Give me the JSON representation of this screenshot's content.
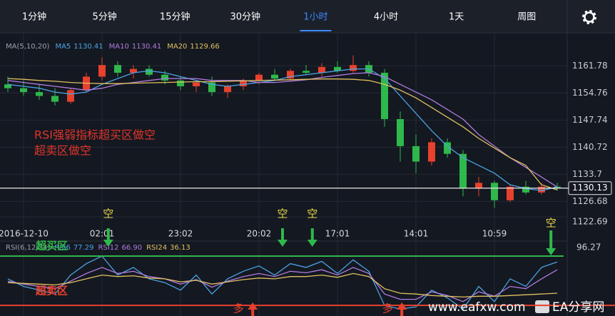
{
  "tabs": [
    "1分钟",
    "5分钟",
    "15分钟",
    "30分钟",
    "1小时",
    "4小时",
    "1天",
    "周图"
  ],
  "selected_tab": 4,
  "watermark": [
    "www.eafxw.com",
    "EA分享网"
  ],
  "chart_data": [
    {
      "type": "candlestick",
      "legend_title": "MA(5,10,20)",
      "categories": [
        null,
        "2016-12-10",
        null,
        null,
        null,
        null,
        "02:01",
        null,
        null,
        null,
        null,
        "23:02",
        null,
        null,
        null,
        null,
        "20:02",
        null,
        null,
        null,
        null,
        "17:01",
        null,
        null,
        null,
        null,
        "14:01",
        null,
        null,
        null,
        null,
        "10:59",
        null,
        null,
        null,
        null
      ],
      "open": [
        1157,
        1156,
        1155,
        1154,
        1152.5,
        1155.5,
        1159,
        1162,
        1160,
        1161,
        1159.5,
        1158,
        1156.5,
        1157.5,
        1155,
        1156.5,
        1158,
        1159.5,
        1158.5,
        1160.5,
        1160,
        1161.5,
        1160.5,
        1162,
        1160,
        1148,
        1141,
        1137,
        1142,
        1139,
        1130,
        1131.5,
        1127,
        1130.5,
        1129,
        1130.5
      ],
      "high": [
        1159,
        1158,
        1157,
        1156,
        1156,
        1160,
        1164,
        1163,
        1162,
        1162,
        1160.5,
        1159,
        1158,
        1159,
        1157,
        1158.5,
        1160,
        1161,
        1161,
        1162,
        1162.5,
        1163,
        1164.5,
        1163,
        1161,
        1150,
        1144,
        1143,
        1143,
        1140,
        1133,
        1132,
        1131,
        1132,
        1131.5,
        1131.5
      ],
      "low": [
        1155,
        1154,
        1153,
        1151.5,
        1152,
        1155,
        1158,
        1159,
        1158.5,
        1159,
        1157,
        1155.5,
        1155,
        1154,
        1153.5,
        1155.5,
        1157,
        1158,
        1158,
        1159.5,
        1159,
        1160,
        1160,
        1159,
        1146,
        1137,
        1134,
        1136,
        1138,
        1128,
        1128,
        1125,
        1126.5,
        1128.5,
        1128.5,
        1129.5
      ],
      "close": [
        1156,
        1155,
        1154,
        1152.5,
        1155.5,
        1159,
        1162,
        1160,
        1161,
        1159.5,
        1158,
        1156.5,
        1157.5,
        1155,
        1156.5,
        1158,
        1159.5,
        1158.5,
        1160.5,
        1160,
        1161.5,
        1160.5,
        1162,
        1160,
        1148,
        1141,
        1137,
        1142,
        1139,
        1130,
        1131.5,
        1127,
        1130.5,
        1129,
        1130.5,
        1130.13
      ],
      "up_color": "#e8412d",
      "down_color": "#2fb84b",
      "series": [
        {
          "name": "MA5",
          "legend_value": "1130.41",
          "color": "#4ba3e3",
          "values": [
            1157,
            1156.5,
            1156,
            1155,
            1154.5,
            1155,
            1157,
            1158.5,
            1160,
            1160.5,
            1160,
            1159,
            1158,
            1157,
            1156.5,
            1157,
            1157.5,
            1158,
            1159,
            1159.5,
            1160,
            1160.5,
            1161,
            1161,
            1158.5,
            1154,
            1149.5,
            1145,
            1141,
            1138,
            1136,
            1134,
            1131,
            1130,
            1129.5,
            1130.41
          ]
        },
        {
          "name": "MA10",
          "legend_value": "1130.41",
          "color": "#b07be0",
          "values": [
            1158,
            1157.5,
            1157,
            1156.5,
            1156,
            1155.5,
            1156,
            1157,
            1157.5,
            1158,
            1158.5,
            1158.5,
            1158.5,
            1158,
            1158,
            1158,
            1157.5,
            1157.5,
            1157.8,
            1158.2,
            1158.8,
            1159.3,
            1159.8,
            1160,
            1159,
            1157,
            1155,
            1153,
            1150.5,
            1148,
            1144,
            1141,
            1138,
            1135.5,
            1133,
            1130.41
          ]
        },
        {
          "name": "MA20",
          "legend_value": "1129.66",
          "color": "#e0c060",
          "values": [
            1158.5,
            1158.3,
            1158,
            1157.8,
            1157.5,
            1157.3,
            1157.2,
            1157.2,
            1157.3,
            1157.4,
            1157.5,
            1157.6,
            1157.7,
            1157.7,
            1157.8,
            1157.9,
            1158,
            1158.1,
            1158.2,
            1158.3,
            1158.4,
            1158.4,
            1158.3,
            1158,
            1157,
            1155.5,
            1153.5,
            1151,
            1148.5,
            1146,
            1143,
            1140.5,
            1138,
            1136,
            1131,
            1129.66
          ]
        }
      ],
      "ylim": [
        1122.69,
        1168.5
      ],
      "yticks": [
        1122.69,
        1126.68,
        1133.7,
        1140.72,
        1147.74,
        1154.76,
        1161.78
      ],
      "grid": true,
      "last_price": 1130.13,
      "annotations": [
        {
          "text": "RSI强弱指标超买区做空",
          "color": "#e0352a"
        },
        {
          "text": "超卖区做空",
          "color": "#e0352a"
        }
      ],
      "sell_signals": {
        "label": "空",
        "color": "#e8d84a",
        "arrow_color": "#2fb84b",
        "at": [
          6.4,
          17.5,
          19.4,
          34.6
        ]
      },
      "buy_signals": {
        "label": "多",
        "color": "#e8412d",
        "at": [
          15.6,
          25.1
        ]
      }
    },
    {
      "type": "line",
      "legend_title": "RSI(6,12,24)",
      "series": [
        {
          "name": "RSI6",
          "legend_value": "77.29",
          "color": "#4ba3e3",
          "values": [
            55,
            45,
            40,
            35,
            60,
            75,
            85,
            60,
            70,
            55,
            50,
            40,
            60,
            35,
            55,
            65,
            72,
            60,
            75,
            70,
            78,
            62,
            80,
            65,
            20,
            15,
            18,
            40,
            30,
            15,
            45,
            25,
            55,
            45,
            70,
            77.29
          ]
        },
        {
          "name": "RSI12",
          "legend_value": "66.90",
          "color": "#b07be0",
          "values": [
            52,
            48,
            45,
            42,
            52,
            62,
            70,
            62,
            65,
            58,
            55,
            48,
            54,
            44,
            52,
            58,
            62,
            58,
            65,
            63,
            67,
            60,
            70,
            62,
            35,
            28,
            28,
            38,
            33,
            25,
            38,
            32,
            45,
            42,
            55,
            66.9
          ]
        },
        {
          "name": "RSI24",
          "legend_value": "36.13",
          "color": "#e0c060",
          "values": [
            50,
            49,
            48,
            47,
            50,
            55,
            60,
            58,
            59,
            56,
            55,
            51,
            53,
            48,
            51,
            54,
            56,
            55,
            58,
            58,
            60,
            57,
            62,
            58,
            42,
            36,
            35,
            33,
            32,
            31,
            32,
            32,
            33,
            34,
            35,
            36.13
          ]
        }
      ],
      "ylim": [
        6,
        96.27
      ],
      "yticks": [
        96.27
      ],
      "reference_lines": [
        {
          "value": 85,
          "color": "#2fb84b",
          "text": "超买区"
        },
        {
          "value": 20,
          "color": "#e8412d",
          "text": "超卖区"
        }
      ]
    }
  ]
}
